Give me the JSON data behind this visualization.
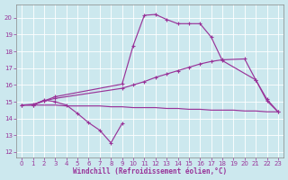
{
  "bg_color": "#cce8ee",
  "grid_color": "#b8dde4",
  "line_color": "#993399",
  "xlabel": "Windchill (Refroidissement éolien,°C)",
  "xlim": [
    -0.5,
    23.5
  ],
  "ylim": [
    11.7,
    20.8
  ],
  "xticks": [
    0,
    1,
    2,
    3,
    4,
    5,
    6,
    7,
    8,
    9,
    10,
    11,
    12,
    13,
    14,
    15,
    16,
    17,
    18,
    19,
    20,
    21,
    22,
    23
  ],
  "yticks": [
    12,
    13,
    14,
    15,
    16,
    17,
    18,
    19,
    20
  ],
  "series": [
    {
      "x": [
        0,
        1,
        2,
        3,
        4,
        5,
        6,
        7,
        8,
        9
      ],
      "y": [
        14.8,
        14.8,
        15.1,
        15.0,
        14.8,
        14.3,
        13.75,
        13.3,
        12.55,
        13.7
      ],
      "marker": true,
      "lw": 0.85
    },
    {
      "x": [
        0,
        1,
        2,
        3,
        4,
        5,
        6,
        7,
        8,
        9,
        10,
        11,
        12,
        13,
        14,
        15,
        16,
        17,
        18,
        19,
        20,
        21,
        22,
        23
      ],
      "y": [
        14.8,
        14.8,
        14.8,
        14.8,
        14.75,
        14.75,
        14.75,
        14.75,
        14.7,
        14.7,
        14.65,
        14.65,
        14.65,
        14.6,
        14.6,
        14.55,
        14.55,
        14.5,
        14.5,
        14.5,
        14.45,
        14.45,
        14.4,
        14.4
      ],
      "marker": false,
      "lw": 0.85
    },
    {
      "x": [
        0,
        1,
        2,
        3,
        9,
        10,
        11,
        12,
        13,
        14,
        15,
        16,
        17,
        18,
        20,
        21,
        22,
        23
      ],
      "y": [
        14.8,
        14.85,
        15.05,
        15.2,
        15.8,
        16.0,
        16.2,
        16.45,
        16.65,
        16.85,
        17.05,
        17.25,
        17.4,
        17.5,
        17.55,
        16.3,
        15.15,
        14.4
      ],
      "marker": true,
      "lw": 0.85
    },
    {
      "x": [
        1,
        2,
        3,
        9,
        10,
        11,
        12,
        13,
        14,
        15,
        16,
        17,
        18,
        21,
        22,
        23
      ],
      "y": [
        14.8,
        15.05,
        15.3,
        16.05,
        18.35,
        20.15,
        20.2,
        19.9,
        19.65,
        19.65,
        19.65,
        18.85,
        17.45,
        16.3,
        15.05,
        14.4
      ],
      "marker": true,
      "lw": 0.85
    }
  ]
}
